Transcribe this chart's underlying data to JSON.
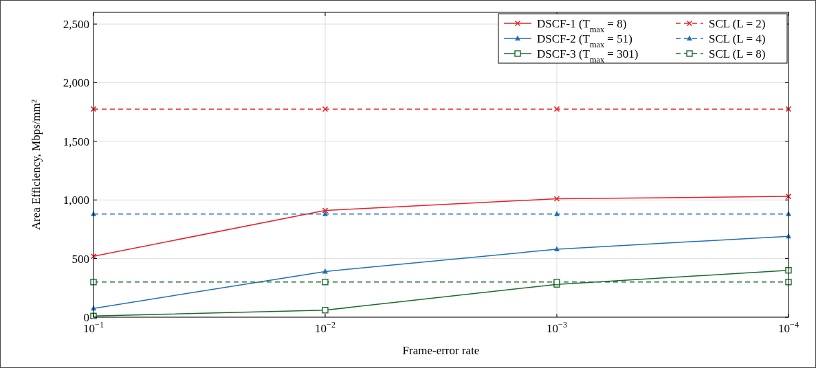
{
  "chart_data": {
    "type": "line",
    "xlabel": "Frame-error rate",
    "ylabel": "Area Efficiency, Mbps/mm²",
    "log": "x",
    "x": [
      0.1,
      0.01,
      0.001,
      0.0001
    ],
    "xlim": [
      0.1,
      0.0001
    ],
    "xticks": [
      {
        "value": 0.1,
        "label": "10$^{−1}$"
      },
      {
        "value": 0.01,
        "label": "10$^{−2}$"
      },
      {
        "value": 0.001,
        "label": "10$^{−3}$"
      },
      {
        "value": 0.0001,
        "label": "10$^{−4}$"
      }
    ],
    "ylim": [
      0,
      2600
    ],
    "yticks": [
      0,
      500,
      {
        "value": 1000,
        "label": "1,000"
      },
      {
        "value": 1500,
        "label": "1,500"
      },
      {
        "value": 2000,
        "label": "2,000"
      },
      {
        "value": 2500,
        "label": "2,500"
      }
    ],
    "grid": true,
    "legend": "top right",
    "series": [
      {
        "name": "DSCF-1 (T$_{max}$ = 8)",
        "color": "#e8202a",
        "marker": "cross",
        "line_style": "solid",
        "values": [
          520,
          910,
          1010,
          1030
        ]
      },
      {
        "name": "SCL (L = 2)",
        "color": "#e8202a",
        "marker": "cross",
        "line_style": "dashed",
        "values": [
          1775,
          1775,
          1775,
          1775
        ]
      },
      {
        "name": "DSCF-2 (T$_{max}$ = 51)",
        "color": "#1f6fb8",
        "marker": "triangle",
        "line_style": "solid",
        "values": [
          75,
          390,
          580,
          690
        ]
      },
      {
        "name": "SCL (L = 4)",
        "color": "#1f6fb8",
        "marker": "triangle",
        "line_style": "dashed",
        "values": [
          880,
          880,
          880,
          880
        ]
      },
      {
        "name": "DSCF-3 (T$_{max}$ = 301)",
        "color": "#1a6b2e",
        "marker": "square",
        "line_style": "solid",
        "values": [
          10,
          60,
          280,
          400
        ]
      },
      {
        "name": "SCL (L = 8)",
        "color": "#1a6b2e",
        "marker": "square",
        "line_style": "dashed",
        "values": [
          300,
          300,
          300,
          300
        ]
      }
    ]
  }
}
